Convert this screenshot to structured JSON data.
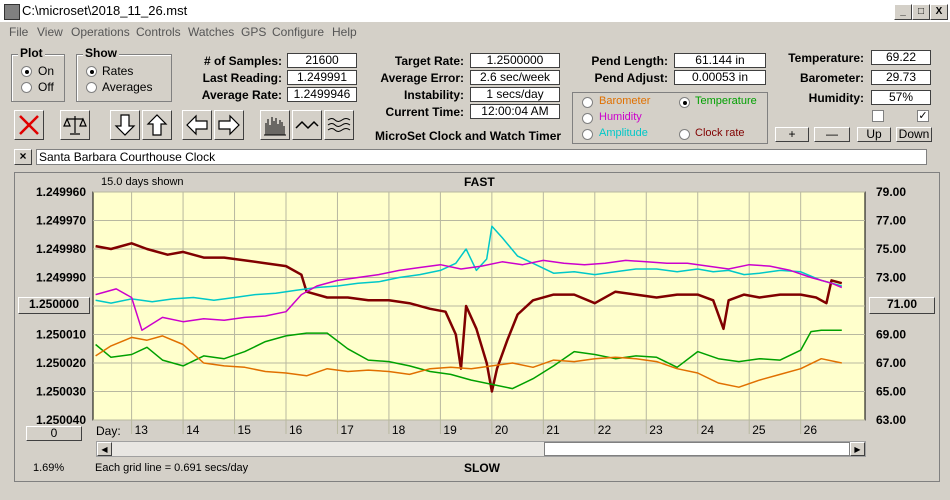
{
  "window": {
    "title": "C:\\microset\\2018_11_26.mst",
    "controls": [
      "_",
      "□",
      "X"
    ]
  },
  "menu": [
    "File",
    "View",
    "Operations",
    "Controls",
    "Watches",
    "GPS",
    "Configure",
    "Help"
  ],
  "plot_group": {
    "label": "Plot",
    "options": [
      "On",
      "Off"
    ],
    "selected": "On"
  },
  "show_group": {
    "label": "Show",
    "options": [
      "Rates",
      "Averages"
    ],
    "selected": "Rates"
  },
  "stats": {
    "samples_label": "# of Samples:",
    "samples": "21600",
    "last_label": "Last Reading:",
    "last": "1.249991",
    "avg_label": "Average Rate:",
    "avg": "1.2499946",
    "target_label": "Target Rate:",
    "target": "1.2500000",
    "error_label": "Average Error:",
    "error": "2.6 sec/week",
    "instab_label": "Instability:",
    "instab": "1 secs/day",
    "time_label": "Current Time:",
    "time": "12:00:04 AM",
    "pendlen_label": "Pend Length:",
    "pendlen": "61.144 in",
    "pendadj_label": "Pend Adjust:",
    "pendadj": "0.00053 in",
    "temp_label": "Temperature:",
    "temp": "69.22",
    "baro_label": "Barometer:",
    "baro": "29.73",
    "hum_label": "Humidity:",
    "hum": "57%"
  },
  "app_subtitle": "MicroSet Clock and Watch Timer",
  "sensor_options": {
    "items": [
      {
        "label": "Barometer",
        "color": "#e07000",
        "selected": false
      },
      {
        "label": "Temperature",
        "color": "#00a000",
        "selected": true
      },
      {
        "label": "Humidity",
        "color": "#cc00cc",
        "selected": false
      },
      {
        "label": "Clock rate",
        "color": "#800000",
        "selected": false
      },
      {
        "label": "Amplitude",
        "color": "#00c8c8",
        "selected": false
      }
    ]
  },
  "scale_buttons": [
    "+",
    "—",
    "Up",
    "Down"
  ],
  "checkboxes": [
    false,
    true
  ],
  "clock_name": "Santa Barbara Courthouse Clock",
  "close_clock": "×",
  "chart_header": {
    "days_shown": "15.0 days shown",
    "fast": "FAST",
    "slow": "SLOW",
    "grid_note": "Each grid line = 0.691 secs/day",
    "zoom": "1.69%",
    "day_label": "Day:",
    "left_btn": "1.250000",
    "right_btn": "71.00",
    "zero_btn": "0"
  },
  "chart_data": {
    "type": "line",
    "x_label": "Day:",
    "x_ticks": [
      "13",
      "14",
      "15",
      "16",
      "17",
      "18",
      "19",
      "20",
      "21",
      "22",
      "23",
      "24",
      "25",
      "26"
    ],
    "xlim": [
      12.25,
      27.25
    ],
    "y_left_ticks": [
      "1.249960",
      "1.249970",
      "1.249980",
      "1.249990",
      "1.250000",
      "1.250010",
      "1.250020",
      "1.250030",
      "1.250040"
    ],
    "y_left_lim": [
      1.24996,
      1.25004
    ],
    "y_left_inverted": true,
    "y_right_ticks": [
      "79.00",
      "77.00",
      "75.00",
      "73.00",
      "71.00",
      "69.00",
      "67.00",
      "65.00",
      "63.00"
    ],
    "y_right_lim": [
      63,
      79
    ],
    "background": "#ffffcc",
    "series": [
      {
        "name": "Clock rate",
        "color": "#800000",
        "axis": "left",
        "x": [
          12.3,
          12.6,
          13.0,
          13.3,
          13.7,
          14.0,
          14.4,
          14.8,
          15.2,
          15.6,
          16.0,
          16.3,
          16.4,
          16.8,
          17.2,
          17.6,
          18.0,
          18.4,
          18.8,
          19.1,
          19.3,
          19.4,
          19.5,
          19.7,
          19.9,
          20.0,
          20.1,
          20.3,
          20.5,
          20.8,
          21.2,
          21.6,
          22.0,
          22.4,
          22.8,
          23.2,
          23.6,
          24.0,
          24.3,
          24.5,
          24.6,
          24.9,
          25.2,
          25.6,
          26.0,
          26.3,
          26.5,
          26.6,
          26.8
        ],
        "y": [
          1.249979,
          1.24998,
          1.249978,
          1.24998,
          1.249982,
          1.249981,
          1.249983,
          1.249983,
          1.249984,
          1.249985,
          1.249986,
          1.249989,
          1.249995,
          1.249997,
          1.249997,
          1.249998,
          1.249998,
          1.249999,
          1.250001,
          1.250002,
          1.25001,
          1.250022,
          1.25,
          1.250008,
          1.25002,
          1.25003,
          1.250022,
          1.250012,
          1.250003,
          1.249998,
          1.249996,
          1.249996,
          1.249999,
          1.249995,
          1.249996,
          1.249997,
          1.249996,
          1.249996,
          1.249998,
          1.250008,
          1.249998,
          1.249996,
          1.249997,
          1.249996,
          1.249996,
          1.249997,
          1.249999,
          1.249991,
          1.249992
        ]
      },
      {
        "name": "Amplitude",
        "color": "#00c8c8",
        "axis": "right",
        "x": [
          12.3,
          12.6,
          13.0,
          13.4,
          13.8,
          14.2,
          14.6,
          15.0,
          15.4,
          15.8,
          16.2,
          16.6,
          17.0,
          17.4,
          17.8,
          18.2,
          18.6,
          19.0,
          19.3,
          19.5,
          19.7,
          19.9,
          20.0,
          20.2,
          20.5,
          20.8,
          21.2,
          21.6,
          22.0,
          22.4,
          22.8,
          23.2,
          23.6,
          24.0,
          24.3,
          24.6,
          24.9,
          25.2,
          25.6,
          26.0,
          26.4,
          26.8
        ],
        "y": [
          71.4,
          71.2,
          71.5,
          71.3,
          71.5,
          71.6,
          71.4,
          71.6,
          71.8,
          71.9,
          72.1,
          72.3,
          72.4,
          72.6,
          72.7,
          73.0,
          73.2,
          73.5,
          74.0,
          75.0,
          73.5,
          74.3,
          76.6,
          75.8,
          74.5,
          74.0,
          73.3,
          73.4,
          73.2,
          73.4,
          73.6,
          73.6,
          73.4,
          73.6,
          73.4,
          73.5,
          73.2,
          73.3,
          73.5,
          73.4,
          72.8,
          72.4
        ]
      },
      {
        "name": "Humidity",
        "color": "#cc00cc",
        "axis": "right",
        "x": [
          12.3,
          12.7,
          13.0,
          13.2,
          13.6,
          14.0,
          14.4,
          14.8,
          15.2,
          15.6,
          16.0,
          16.3,
          16.6,
          17.0,
          17.4,
          17.8,
          18.2,
          18.6,
          19.0,
          19.4,
          19.8,
          20.2,
          20.6,
          21.0,
          21.4,
          21.8,
          22.2,
          22.6,
          23.0,
          23.4,
          23.8,
          24.2,
          24.6,
          25.0,
          25.4,
          25.8,
          26.2,
          26.6,
          26.8
        ],
        "y": [
          71.8,
          72.2,
          71.6,
          69.3,
          70.2,
          69.9,
          70.1,
          70.0,
          70.2,
          70.3,
          70.6,
          71.8,
          72.4,
          72.8,
          73.0,
          73.2,
          73.5,
          73.7,
          73.9,
          73.6,
          73.8,
          74.1,
          73.9,
          74.2,
          74.0,
          73.9,
          74.0,
          74.2,
          74.1,
          74.0,
          74.0,
          73.8,
          73.6,
          73.9,
          73.8,
          73.5,
          73.0,
          72.6,
          72.3
        ]
      },
      {
        "name": "Temperature",
        "color": "#00a000",
        "axis": "right",
        "x": [
          12.3,
          12.6,
          13.0,
          13.3,
          13.6,
          14.0,
          14.4,
          14.8,
          15.2,
          15.6,
          16.0,
          16.4,
          16.8,
          17.2,
          17.6,
          18.0,
          18.4,
          18.8,
          19.2,
          19.6,
          20.0,
          20.4,
          20.8,
          21.2,
          21.6,
          22.0,
          22.4,
          22.8,
          23.2,
          23.6,
          24.0,
          24.4,
          24.8,
          25.2,
          25.6,
          26.0,
          26.2,
          26.4,
          26.8
        ],
        "y": [
          68.3,
          67.4,
          67.6,
          68.1,
          67.2,
          66.8,
          67.5,
          67.3,
          67.8,
          68.5,
          68.9,
          69.1,
          69.1,
          68.0,
          67.2,
          67.1,
          66.8,
          66.4,
          66.2,
          65.8,
          65.5,
          65.2,
          65.9,
          66.8,
          67.8,
          67.6,
          67.3,
          67.5,
          67.4,
          66.7,
          67.8,
          67.3,
          67.1,
          67.3,
          67.2,
          67.9,
          69.2,
          69.3,
          69.3
        ]
      },
      {
        "name": "Barometer",
        "color": "#e07000",
        "axis": "right",
        "x": [
          12.3,
          12.6,
          13.0,
          13.3,
          13.6,
          14.0,
          14.4,
          14.8,
          15.2,
          15.6,
          16.0,
          16.4,
          16.8,
          17.2,
          17.6,
          18.0,
          18.4,
          18.8,
          19.2,
          19.6,
          20.0,
          20.4,
          20.8,
          21.2,
          21.6,
          22.0,
          22.4,
          22.8,
          23.2,
          23.6,
          24.0,
          24.4,
          24.8,
          25.2,
          25.6,
          26.0,
          26.4,
          26.8
        ],
        "y": [
          67.5,
          68.2,
          68.8,
          68.6,
          68.9,
          68.3,
          67.0,
          66.8,
          66.7,
          66.4,
          66.3,
          66.1,
          66.6,
          66.4,
          66.5,
          66.4,
          66.2,
          66.6,
          66.7,
          66.6,
          66.8,
          67.0,
          66.7,
          67.2,
          67.1,
          67.3,
          67.4,
          67.3,
          67.1,
          66.6,
          66.3,
          65.6,
          65.3,
          65.8,
          66.2,
          66.6,
          67.3,
          67.0
        ]
      }
    ]
  }
}
